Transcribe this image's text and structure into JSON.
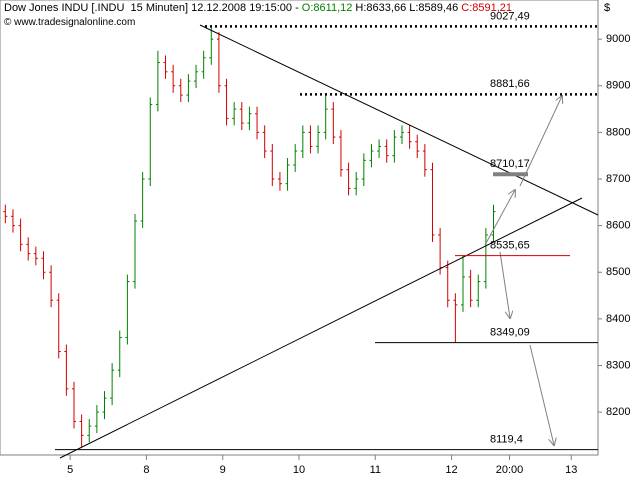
{
  "chart_data": {
    "type": "ohlc",
    "title": "Dow Jones INDU [.INDU  15 Minuten]",
    "datetime": "12.12.2008 19:15:00 -",
    "info_open": "O:8611,12",
    "info_high": "H:8633,66",
    "info_low": "L:8589,46",
    "info_close": "C:8591,21",
    "source": "www.tradesignalonline.com",
    "y_axis_label": "$",
    "up_color": "#008000",
    "down_color": "#d00000",
    "xlim": [
      0.08,
      7.92
    ],
    "xticks": [
      {
        "value": 1,
        "label": "5"
      },
      {
        "value": 2,
        "label": "8"
      },
      {
        "value": 3,
        "label": "9"
      },
      {
        "value": 4,
        "label": "10"
      },
      {
        "value": 5,
        "label": "11"
      },
      {
        "value": 6,
        "label": "12"
      },
      {
        "value": 6.76,
        "label": "20:00"
      },
      {
        "value": 7.57,
        "label": "13"
      }
    ],
    "ylim": [
      8108,
      9084
    ],
    "yticks": [
      8200,
      8300,
      8400,
      8500,
      8600,
      8700,
      8800,
      8900,
      9000
    ],
    "levels": [
      {
        "value": 9027.49,
        "label": "9027,49"
      },
      {
        "value": 8881.66,
        "label": "8881,66"
      },
      {
        "value": 8710.17,
        "label": "8710,17"
      },
      {
        "value": 8535.65,
        "label": "8535,65"
      },
      {
        "value": 8349.09,
        "label": "8349,09"
      },
      {
        "value": 8119.4,
        "label": "8119,4"
      }
    ],
    "x": [
      0.15,
      0.25,
      0.35,
      0.45,
      0.55,
      0.65,
      0.75,
      0.85,
      0.95,
      1.05,
      1.15,
      1.25,
      1.35,
      1.45,
      1.55,
      1.65,
      1.75,
      1.85,
      1.95,
      2.05,
      2.15,
      2.25,
      2.35,
      2.45,
      2.55,
      2.65,
      2.75,
      2.85,
      2.95,
      3.05,
      3.15,
      3.25,
      3.35,
      3.45,
      3.55,
      3.65,
      3.75,
      3.85,
      3.95,
      4.05,
      4.15,
      4.25,
      4.35,
      4.45,
      4.55,
      4.65,
      4.75,
      4.85,
      4.95,
      5.05,
      5.15,
      5.25,
      5.35,
      5.45,
      5.55,
      5.65,
      5.75,
      5.85,
      5.95,
      6.05,
      6.15,
      6.25,
      6.35,
      6.45,
      6.55
    ],
    "open": [
      8630,
      8620,
      8600,
      8560,
      8540,
      8530,
      8500,
      8440,
      8330,
      8250,
      8180,
      8150,
      8170,
      8200,
      8230,
      8290,
      8360,
      8480,
      8610,
      8700,
      8860,
      8950,
      8930,
      8900,
      8880,
      8910,
      8930,
      8960,
      9000,
      8900,
      8830,
      8850,
      8820,
      8840,
      8800,
      8760,
      8700,
      8690,
      8730,
      8760,
      8800,
      8770,
      8800,
      8850,
      8790,
      8720,
      8680,
      8700,
      8740,
      8760,
      8770,
      8750,
      8790,
      8800,
      8780,
      8760,
      8720,
      8580,
      8510,
      8440,
      8430,
      8490,
      8440,
      8480,
      8580
    ],
    "high": [
      8645,
      8635,
      8615,
      8575,
      8555,
      8545,
      8515,
      8455,
      8345,
      8265,
      8195,
      8185,
      8215,
      8245,
      8305,
      8375,
      8495,
      8625,
      8715,
      8875,
      8975,
      8965,
      8945,
      8915,
      8925,
      8945,
      8975,
      9027,
      9015,
      8915,
      8865,
      8865,
      8855,
      8855,
      8815,
      8775,
      8715,
      8745,
      8775,
      8815,
      8815,
      8815,
      8881,
      8865,
      8805,
      8735,
      8715,
      8755,
      8775,
      8785,
      8785,
      8805,
      8815,
      8815,
      8795,
      8775,
      8735,
      8595,
      8525,
      8455,
      8535,
      8505,
      8495,
      8595,
      8645
    ],
    "low": [
      8605,
      8585,
      8545,
      8525,
      8515,
      8485,
      8425,
      8315,
      8235,
      8165,
      8125,
      8135,
      8155,
      8185,
      8215,
      8275,
      8345,
      8465,
      8595,
      8685,
      8845,
      8915,
      8885,
      8865,
      8865,
      8895,
      8915,
      8945,
      8885,
      8815,
      8815,
      8805,
      8805,
      8785,
      8745,
      8685,
      8675,
      8675,
      8715,
      8745,
      8755,
      8755,
      8785,
      8775,
      8705,
      8665,
      8665,
      8685,
      8725,
      8745,
      8735,
      8735,
      8775,
      8765,
      8745,
      8705,
      8565,
      8495,
      8425,
      8349,
      8415,
      8425,
      8425,
      8465,
      8565
    ],
    "close": [
      8620,
      8600,
      8560,
      8540,
      8530,
      8500,
      8440,
      8330,
      8250,
      8180,
      8150,
      8170,
      8200,
      8230,
      8290,
      8360,
      8480,
      8610,
      8700,
      8860,
      8950,
      8930,
      8900,
      8880,
      8910,
      8930,
      8960,
      9000,
      8900,
      8830,
      8850,
      8820,
      8840,
      8800,
      8760,
      8700,
      8690,
      8730,
      8760,
      8800,
      8770,
      8800,
      8850,
      8790,
      8720,
      8680,
      8700,
      8740,
      8760,
      8770,
      8750,
      8790,
      8800,
      8780,
      8760,
      8720,
      8580,
      8510,
      8440,
      8430,
      8490,
      8440,
      8480,
      8580,
      8630
    ]
  }
}
